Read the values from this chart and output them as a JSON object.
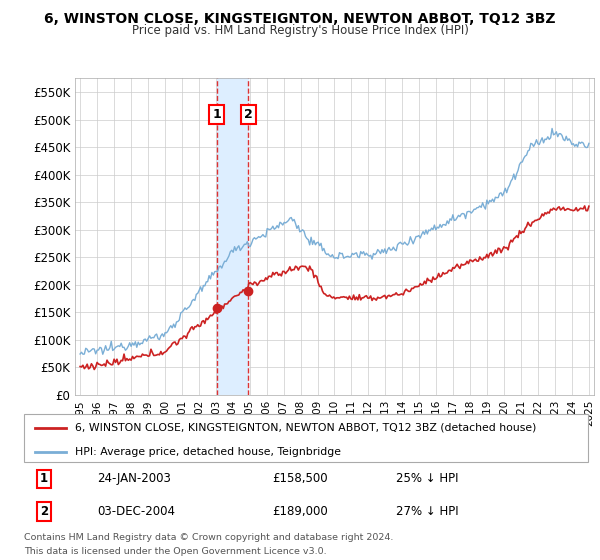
{
  "title": "6, WINSTON CLOSE, KINGSTEIGNTON, NEWTON ABBOT, TQ12 3BZ",
  "subtitle": "Price paid vs. HM Land Registry's House Price Index (HPI)",
  "legend_line1": "6, WINSTON CLOSE, KINGSTEIGNTON, NEWTON ABBOT, TQ12 3BZ (detached house)",
  "legend_line2": "HPI: Average price, detached house, Teignbridge",
  "footer": "Contains HM Land Registry data © Crown copyright and database right 2024.\nThis data is licensed under the Open Government Licence v3.0.",
  "transactions": [
    {
      "label": "1",
      "date": "24-JAN-2003",
      "price": 158500,
      "hpi_note": "25% ↓ HPI",
      "x_year": 2003.07
    },
    {
      "label": "2",
      "date": "03-DEC-2004",
      "price": 189000,
      "hpi_note": "27% ↓ HPI",
      "x_year": 2004.92
    }
  ],
  "hpi_color": "#7aaed6",
  "price_color": "#cc2222",
  "shading_color": "#ddeeff",
  "vline_color": "#dd3333",
  "ylim": [
    0,
    575000
  ],
  "yticks": [
    0,
    50000,
    100000,
    150000,
    200000,
    250000,
    300000,
    350000,
    400000,
    450000,
    500000,
    550000
  ],
  "xlim_start": 1994.7,
  "xlim_end": 2025.3,
  "xticks": [
    1995,
    1996,
    1997,
    1998,
    1999,
    2000,
    2001,
    2002,
    2003,
    2004,
    2005,
    2006,
    2007,
    2008,
    2009,
    2010,
    2011,
    2012,
    2013,
    2014,
    2015,
    2016,
    2017,
    2018,
    2019,
    2020,
    2021,
    2022,
    2023,
    2024,
    2025
  ]
}
